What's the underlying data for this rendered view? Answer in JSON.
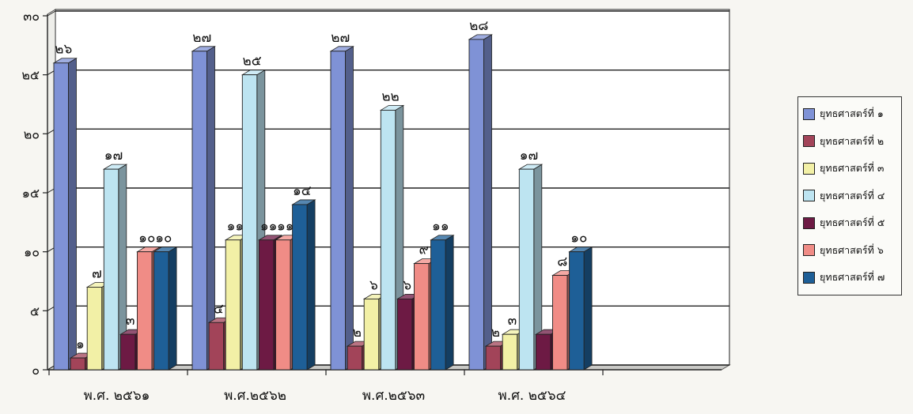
{
  "chart_data": {
    "type": "bar",
    "style": "3d-clustered",
    "title": "",
    "xlabel": "",
    "ylabel": "",
    "ylim": [
      0,
      30
    ],
    "yticks": [
      "๐",
      "๕",
      "๑๐",
      "๑๕",
      "๒๐",
      "๒๕",
      "๓๐"
    ],
    "grid": true,
    "legend_position": "right",
    "categories": [
      "พ.ศ. ๒๕๖๑",
      "พ.ศ.๒๕๖๒",
      "พ.ศ.๒๕๖๓",
      "พ.ศ. ๒๕๖๔"
    ],
    "series": [
      {
        "name": "ยุทธศาสตร์ที่ ๑",
        "color": "#7f92d6",
        "values": [
          26,
          27,
          27,
          28
        ],
        "labels": [
          "๒๖",
          "๒๗",
          "๒๗",
          "๒๘"
        ]
      },
      {
        "name": "ยุทธศาสตร์ที่ ๒",
        "color": "#a24459",
        "values": [
          1,
          4,
          2,
          2
        ],
        "labels": [
          "๑",
          "๔",
          "๒",
          "๒"
        ]
      },
      {
        "name": "ยุทธศาสตร์ที่ ๓",
        "color": "#f2f0a6",
        "values": [
          7,
          11,
          6,
          3
        ],
        "labels": [
          "๗",
          "๑๑",
          "๖",
          "๓"
        ]
      },
      {
        "name": "ยุทธศาสตร์ที่ ๔",
        "color": "#bde4f1",
        "values": [
          17,
          25,
          22,
          17
        ],
        "labels": [
          "๑๗",
          "๒๕",
          "๒๒",
          "๑๗"
        ]
      },
      {
        "name": "ยุทธศาสตร์ที่ ๕",
        "color": "#6d1a44",
        "values": [
          3,
          11,
          6,
          3
        ],
        "labels": [
          "๓",
          "๑๑",
          "๖",
          ""
        ]
      },
      {
        "name": "ยุทธศาสตร์ที่ ๖",
        "color": "#f08c86",
        "values": [
          10,
          11,
          9,
          8
        ],
        "labels": [
          "๑๐",
          "๑๑",
          "๙",
          "๘"
        ]
      },
      {
        "name": "ยุทธศาสตร์ที่ ๗",
        "color": "#1e5f97",
        "values": [
          10,
          14,
          11,
          10
        ],
        "labels": [
          "๑๐",
          "๑๔",
          "๑๑",
          "๑๐"
        ]
      }
    ]
  }
}
